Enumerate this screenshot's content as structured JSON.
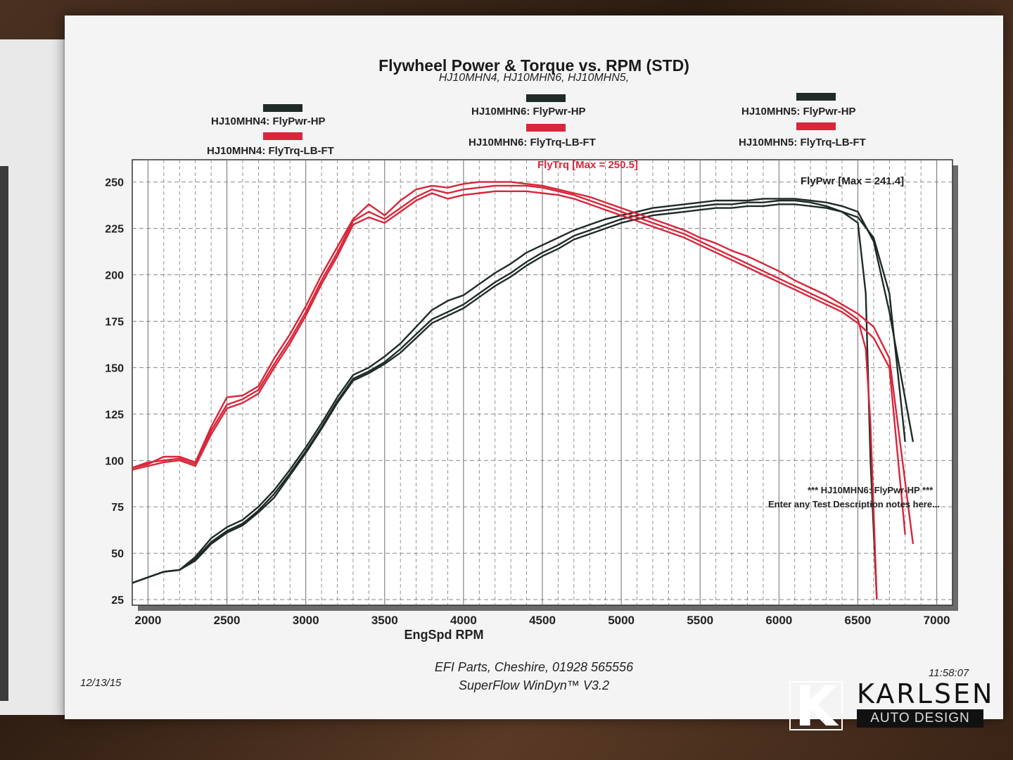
{
  "title": "Flywheel Power & Torque vs. RPM (STD)",
  "subtitle": "HJ10MHN4, HJ10MHN6, HJ10MHN5,",
  "legend": [
    {
      "power": "HJ10MHN4: FlyPwr-HP",
      "torque": "HJ10MHN4: FlyTrq-LB-FT"
    },
    {
      "power": "HJ10MHN6: FlyPwr-HP",
      "torque": "HJ10MHN6: FlyTrq-LB-FT"
    },
    {
      "power": "HJ10MHN5: FlyPwr-HP",
      "torque": "HJ10MHN5: FlyTrq-LB-FT"
    }
  ],
  "annotations": {
    "trq_max": "FlyTrq [Max = 250.5]",
    "pwr_max": "FlyPwr [Max = 241.4]",
    "note1": "*** HJ10MHN6: FlyPwr-HP    ***",
    "note2": "Enter any Test Description notes here..."
  },
  "footer": {
    "date": "12/13/15",
    "line1": "EFI Parts, Cheshire, 01928 565556",
    "line2": "SuperFlow WinDyn™ V3.2",
    "time": "11:58:07"
  },
  "logo": {
    "letter": "K",
    "name": "KARLSEN",
    "sub": "AUTO DESIGN"
  },
  "colors": {
    "power": "#1f2b26",
    "torque": "#d8263a",
    "grid": "#7a7a7a",
    "plot_bg": "#ffffff"
  },
  "chart_data": {
    "type": "line",
    "title": "Flywheel Power & Torque vs. RPM (STD)",
    "xlabel": "EngSpd RPM",
    "ylabel": "",
    "xlim": [
      1900,
      7100
    ],
    "ylim": [
      22,
      262
    ],
    "xticks": [
      2000,
      2500,
      3000,
      3500,
      4000,
      4500,
      5000,
      5500,
      6000,
      6500,
      7000
    ],
    "yticks": [
      25,
      50,
      75,
      100,
      125,
      150,
      175,
      200,
      225,
      250
    ],
    "grid": true,
    "series": [
      {
        "name": "HJ10MHN4: FlyPwr-HP",
        "kind": "power",
        "x": [
          1900,
          2000,
          2100,
          2200,
          2300,
          2400,
          2500,
          2600,
          2700,
          2800,
          2900,
          3000,
          3100,
          3200,
          3300,
          3400,
          3500,
          3600,
          3700,
          3800,
          3900,
          4000,
          4100,
          4200,
          4300,
          4400,
          4500,
          4600,
          4700,
          4800,
          4900,
          5000,
          5100,
          5200,
          5300,
          5400,
          5500,
          5600,
          5700,
          5800,
          5900,
          6000,
          6100,
          6200,
          6300,
          6400,
          6500,
          6600,
          6700,
          6850
        ],
        "y": [
          34,
          37,
          40,
          41,
          48,
          58,
          64,
          68,
          75,
          84,
          95,
          107,
          120,
          134,
          146,
          150,
          156,
          163,
          172,
          181,
          186,
          189,
          195,
          201,
          206,
          212,
          216,
          220,
          224,
          227,
          230,
          232,
          234,
          236,
          237,
          238,
          239,
          240,
          240,
          240,
          241,
          241,
          241,
          240,
          239,
          237,
          234,
          218,
          180,
          110
        ]
      },
      {
        "name": "HJ10MHN6: FlyPwr-HP",
        "kind": "power",
        "x": [
          1900,
          2000,
          2100,
          2200,
          2300,
          2400,
          2500,
          2600,
          2700,
          2800,
          2900,
          3000,
          3100,
          3200,
          3300,
          3400,
          3500,
          3600,
          3700,
          3800,
          3900,
          4000,
          4100,
          4200,
          4300,
          4400,
          4500,
          4600,
          4700,
          4800,
          4900,
          5000,
          5100,
          5200,
          5300,
          5400,
          5500,
          5600,
          5700,
          5800,
          5900,
          6000,
          6100,
          6200,
          6300,
          6400,
          6500,
          6550,
          6580,
          6620
        ],
        "y": [
          34,
          37,
          40,
          41,
          47,
          56,
          62,
          66,
          73,
          82,
          93,
          105,
          118,
          132,
          144,
          148,
          153,
          160,
          168,
          176,
          180,
          184,
          190,
          196,
          201,
          207,
          212,
          216,
          221,
          224,
          227,
          230,
          232,
          234,
          235,
          236,
          237,
          238,
          238,
          239,
          239,
          240,
          240,
          239,
          237,
          234,
          228,
          190,
          100,
          25
        ]
      },
      {
        "name": "HJ10MHN5: FlyPwr-HP",
        "kind": "power",
        "x": [
          1900,
          2000,
          2100,
          2200,
          2300,
          2400,
          2500,
          2600,
          2700,
          2800,
          2900,
          3000,
          3100,
          3200,
          3300,
          3400,
          3500,
          3600,
          3700,
          3800,
          3900,
          4000,
          4100,
          4200,
          4300,
          4400,
          4500,
          4600,
          4700,
          4800,
          4900,
          5000,
          5100,
          5200,
          5300,
          5400,
          5500,
          5600,
          5700,
          5800,
          5900,
          6000,
          6100,
          6200,
          6300,
          6400,
          6500,
          6600,
          6700,
          6800
        ],
        "y": [
          34,
          37,
          40,
          41,
          46,
          55,
          61,
          65,
          72,
          80,
          92,
          104,
          117,
          131,
          143,
          147,
          152,
          158,
          166,
          174,
          178,
          182,
          188,
          194,
          199,
          205,
          210,
          214,
          219,
          222,
          225,
          228,
          230,
          232,
          233,
          234,
          235,
          236,
          236,
          237,
          237,
          238,
          238,
          237,
          236,
          234,
          231,
          220,
          190,
          110
        ]
      },
      {
        "name": "HJ10MHN4: FlyTrq-LB-FT",
        "kind": "torque",
        "x": [
          1900,
          2000,
          2100,
          2200,
          2300,
          2400,
          2500,
          2600,
          2700,
          2800,
          2900,
          3000,
          3100,
          3200,
          3300,
          3400,
          3500,
          3600,
          3700,
          3800,
          3900,
          4000,
          4100,
          4200,
          4300,
          4400,
          4500,
          4600,
          4700,
          4800,
          4900,
          5000,
          5100,
          5200,
          5300,
          5400,
          5500,
          5600,
          5700,
          5800,
          5900,
          6000,
          6100,
          6200,
          6300,
          6400,
          6500,
          6600,
          6700,
          6850
        ],
        "y": [
          96,
          98,
          102,
          102,
          99,
          118,
          134,
          135,
          140,
          155,
          168,
          183,
          200,
          215,
          230,
          238,
          232,
          240,
          246,
          248,
          247,
          249,
          250,
          250,
          250,
          249,
          248,
          246,
          244,
          242,
          239,
          236,
          233,
          230,
          227,
          224,
          220,
          217,
          213,
          210,
          206,
          202,
          197,
          193,
          189,
          184,
          179,
          172,
          155,
          55
        ]
      },
      {
        "name": "HJ10MHN6: FlyTrq-LB-FT",
        "kind": "torque",
        "x": [
          1900,
          2000,
          2100,
          2200,
          2300,
          2400,
          2500,
          2600,
          2700,
          2800,
          2900,
          3000,
          3100,
          3200,
          3300,
          3400,
          3500,
          3600,
          3700,
          3800,
          3900,
          4000,
          4100,
          4200,
          4300,
          4400,
          4500,
          4600,
          4700,
          4800,
          4900,
          5000,
          5100,
          5200,
          5300,
          5400,
          5500,
          5600,
          5700,
          5800,
          5900,
          6000,
          6100,
          6200,
          6300,
          6400,
          6500,
          6550,
          6580,
          6620
        ],
        "y": [
          96,
          99,
          100,
          101,
          98,
          116,
          130,
          133,
          138,
          152,
          165,
          180,
          197,
          212,
          229,
          234,
          230,
          236,
          242,
          246,
          244,
          246,
          247,
          248,
          248,
          248,
          247,
          245,
          243,
          240,
          237,
          234,
          231,
          228,
          225,
          222,
          218,
          214,
          210,
          206,
          202,
          198,
          194,
          190,
          186,
          182,
          176,
          160,
          120,
          25
        ]
      },
      {
        "name": "HJ10MHN5: FlyTrq-LB-FT",
        "kind": "torque",
        "x": [
          1900,
          2000,
          2100,
          2200,
          2300,
          2400,
          2500,
          2600,
          2700,
          2800,
          2900,
          3000,
          3100,
          3200,
          3300,
          3400,
          3500,
          3600,
          3700,
          3800,
          3900,
          4000,
          4100,
          4200,
          4300,
          4400,
          4500,
          4600,
          4700,
          4800,
          4900,
          5000,
          5100,
          5200,
          5300,
          5400,
          5500,
          5600,
          5700,
          5800,
          5900,
          6000,
          6100,
          6200,
          6300,
          6400,
          6500,
          6600,
          6700,
          6800
        ],
        "y": [
          95,
          97,
          99,
          100,
          97,
          114,
          128,
          131,
          136,
          150,
          163,
          178,
          195,
          210,
          227,
          231,
          228,
          234,
          240,
          244,
          241,
          243,
          244,
          245,
          245,
          245,
          244,
          243,
          241,
          238,
          235,
          232,
          229,
          226,
          223,
          220,
          216,
          212,
          208,
          204,
          200,
          196,
          192,
          188,
          184,
          180,
          174,
          166,
          150,
          60
        ]
      }
    ]
  }
}
